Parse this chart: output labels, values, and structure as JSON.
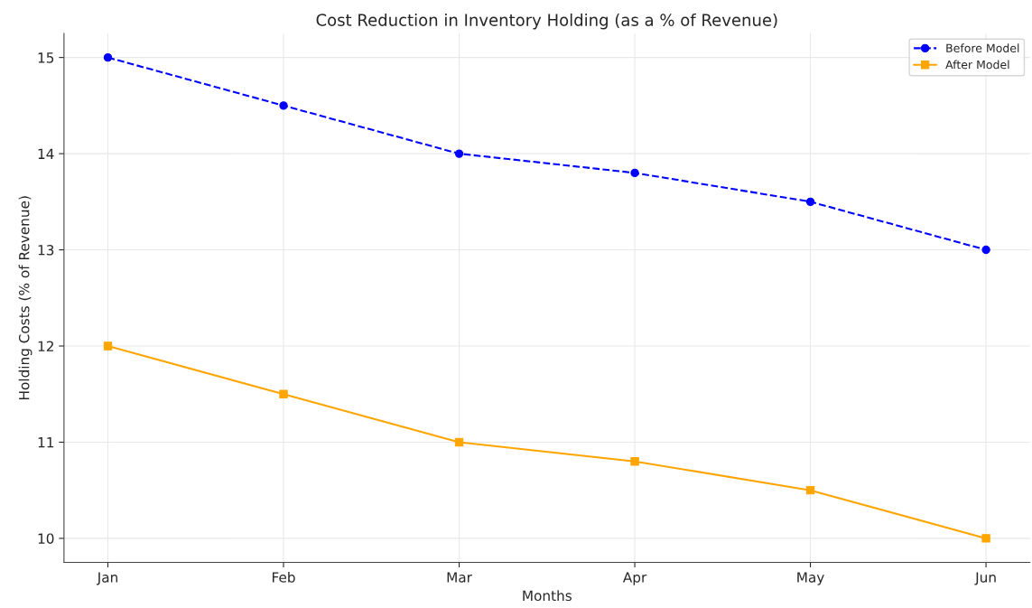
{
  "chart_data": {
    "type": "line",
    "title": "Cost Reduction in Inventory Holding (as a % of Revenue)",
    "xlabel": "Months",
    "ylabel": "Holding Costs (% of Revenue)",
    "categories": [
      "Jan",
      "Feb",
      "Mar",
      "Apr",
      "May",
      "Jun"
    ],
    "series": [
      {
        "name": "Before Model",
        "color": "#0000ff",
        "values": [
          15,
          14.5,
          14,
          13.8,
          13.5,
          13
        ],
        "marker": "circle",
        "line_style": "dashed"
      },
      {
        "name": "After Model",
        "color": "#ffa500",
        "values": [
          12,
          11.5,
          11,
          10.8,
          10.5,
          10
        ],
        "marker": "square",
        "line_style": "solid"
      }
    ],
    "ylim": [
      9.75,
      15.25
    ],
    "yticks": [
      10,
      11,
      12,
      13,
      14,
      15
    ],
    "grid": true,
    "legend": "top right"
  }
}
